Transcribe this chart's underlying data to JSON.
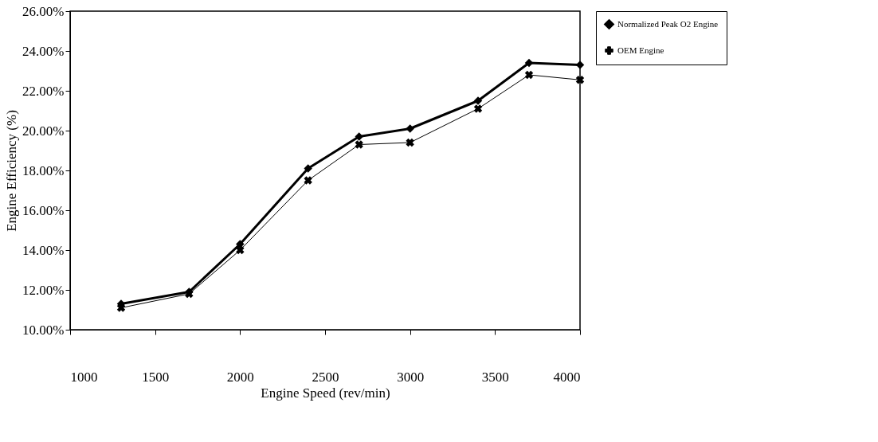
{
  "chart_data": {
    "type": "line",
    "xlabel": "Engine Speed (rev/min)",
    "ylabel": "Engine Efficiency (%)",
    "x": [
      1300,
      1700,
      2000,
      2400,
      2700,
      3000,
      3400,
      3700,
      4000
    ],
    "series": [
      {
        "name": "Normalized Peak O2 Engine",
        "color": "#000000",
        "marker": "diamond",
        "values": [
          11.3,
          11.9,
          14.3,
          18.1,
          19.7,
          20.1,
          21.5,
          23.4,
          23.3
        ]
      },
      {
        "name": "OEM Engine",
        "color": "#000000",
        "marker": "cross",
        "values": [
          11.1,
          11.8,
          14.0,
          17.5,
          19.3,
          19.4,
          21.1,
          22.8,
          22.55
        ]
      }
    ],
    "xlim": [
      1000,
      4000
    ],
    "xticks": [
      1000,
      1500,
      2000,
      2500,
      3000,
      3500,
      4000
    ],
    "ylim": [
      10,
      26
    ],
    "yticks": [
      {
        "value": 10,
        "label": "10.00%"
      },
      {
        "value": 12,
        "label": "12.00%"
      },
      {
        "value": 14,
        "label": "14.00%"
      },
      {
        "value": 16,
        "label": "16.00%"
      },
      {
        "value": 18,
        "label": "18.00%"
      },
      {
        "value": 20,
        "label": "20.00%"
      },
      {
        "value": 22,
        "label": "22.00%"
      },
      {
        "value": 24,
        "label": "24.00%"
      },
      {
        "value": 26,
        "label": "26.00%"
      }
    ],
    "grid": false,
    "legend": "right"
  }
}
